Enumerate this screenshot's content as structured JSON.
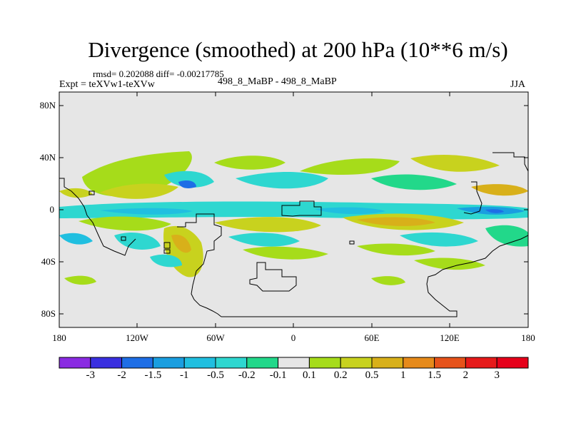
{
  "title": "Divergence (smoothed) at 200 hPa (10**6 m/s)",
  "rmsd_line": "rmsd= 0.202088 diff= -0.00217785",
  "expt_line": "Expt = teXVw1-teXVw",
  "center_line": "498_8_MaBP - 498_8_MaBP",
  "season": "JJA",
  "y_tick_labels": [
    "80N",
    "40N",
    "0",
    "40S",
    "80S"
  ],
  "x_tick_labels": [
    "180",
    "120W",
    "60W",
    "0",
    "60E",
    "120E",
    "180"
  ],
  "colorbar": {
    "labels": [
      "-3",
      "-2",
      "-1.5",
      "-1",
      "-0.5",
      "-0.2",
      "-0.1",
      "0.1",
      "0.2",
      "0.5",
      "1",
      "1.5",
      "2",
      "3"
    ],
    "colors": [
      "#8a2be2",
      "#3a2fe0",
      "#1e6ee6",
      "#1a9ee0",
      "#20bfe0",
      "#2ed7d0",
      "#22d88a",
      "#e6e6e6",
      "#a6dc1a",
      "#c8d21e",
      "#d8b01a",
      "#e68a1a",
      "#e6521a",
      "#e61a1a",
      "#e6001a"
    ]
  },
  "map": {
    "background_color": "#e6e6e6",
    "coastline_color": "#000000"
  }
}
